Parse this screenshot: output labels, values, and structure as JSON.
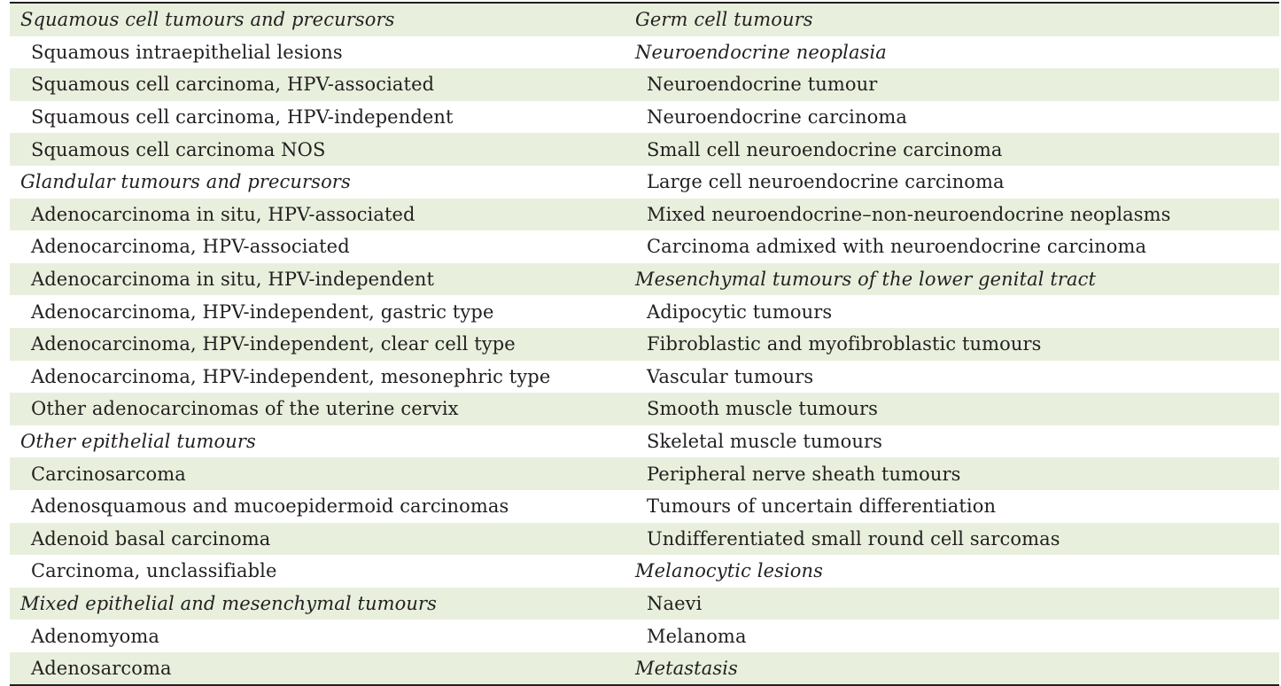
{
  "table": {
    "rows": [
      {
        "left": {
          "text": "Squamous cell tumours and precursors",
          "heading": true
        },
        "right": {
          "text": "Germ cell tumours",
          "heading": true
        }
      },
      {
        "left": {
          "text": "Squamous intraepithelial lesions",
          "heading": false
        },
        "right": {
          "text": "Neuroendocrine neoplasia",
          "heading": true
        }
      },
      {
        "left": {
          "text": "Squamous cell carcinoma, HPV-associated",
          "heading": false
        },
        "right": {
          "text": "Neuroendocrine tumour",
          "heading": false
        }
      },
      {
        "left": {
          "text": "Squamous cell carcinoma, HPV-independent",
          "heading": false
        },
        "right": {
          "text": "Neuroendocrine carcinoma",
          "heading": false
        }
      },
      {
        "left": {
          "text": "Squamous cell carcinoma NOS",
          "heading": false
        },
        "right": {
          "text": "Small cell neuroendocrine carcinoma",
          "heading": false
        }
      },
      {
        "left": {
          "text": "Glandular tumours and precursors",
          "heading": true
        },
        "right": {
          "text": "Large cell neuroendocrine carcinoma",
          "heading": false
        }
      },
      {
        "left": {
          "text": "Adenocarcinoma in situ, HPV-associated",
          "heading": false
        },
        "right": {
          "text": "Mixed neuroendocrine–non-neuroendocrine neoplasms",
          "heading": false
        }
      },
      {
        "left": {
          "text": "Adenocarcinoma, HPV-associated",
          "heading": false
        },
        "right": {
          "text": "Carcinoma admixed with neuroendocrine carcinoma",
          "heading": false
        }
      },
      {
        "left": {
          "text": "Adenocarcinoma in situ, HPV-independent",
          "heading": false
        },
        "right": {
          "text": "Mesenchymal tumours of the lower genital tract",
          "heading": true
        }
      },
      {
        "left": {
          "text": "Adenocarcinoma, HPV-independent, gastric type",
          "heading": false
        },
        "right": {
          "text": "Adipocytic tumours",
          "heading": false
        }
      },
      {
        "left": {
          "text": "Adenocarcinoma, HPV-independent, clear cell type",
          "heading": false
        },
        "right": {
          "text": "Fibroblastic and myofibroblastic tumours",
          "heading": false
        }
      },
      {
        "left": {
          "text": "Adenocarcinoma, HPV-independent, mesonephric type",
          "heading": false
        },
        "right": {
          "text": "Vascular tumours",
          "heading": false
        }
      },
      {
        "left": {
          "text": "Other adenocarcinomas of the uterine cervix",
          "heading": false
        },
        "right": {
          "text": "Smooth muscle tumours",
          "heading": false
        }
      },
      {
        "left": {
          "text": "Other epithelial tumours",
          "heading": true
        },
        "right": {
          "text": "Skeletal muscle tumours",
          "heading": false
        }
      },
      {
        "left": {
          "text": "Carcinosarcoma",
          "heading": false
        },
        "right": {
          "text": "Peripheral nerve sheath tumours",
          "heading": false
        }
      },
      {
        "left": {
          "text": "Adenosquamous and mucoepidermoid carcinomas",
          "heading": false
        },
        "right": {
          "text": "Tumours of uncertain differentiation",
          "heading": false
        }
      },
      {
        "left": {
          "text": "Adenoid basal carcinoma",
          "heading": false
        },
        "right": {
          "text": "Undifferentiated small round cell sarcomas",
          "heading": false
        }
      },
      {
        "left": {
          "text": "Carcinoma, unclassifiable",
          "heading": false
        },
        "right": {
          "text": "Melanocytic lesions",
          "heading": true
        }
      },
      {
        "left": {
          "text": "Mixed epithelial and mesenchymal tumours",
          "heading": true
        },
        "right": {
          "text": "Naevi",
          "heading": false
        }
      },
      {
        "left": {
          "text": "Adenomyoma",
          "heading": false
        },
        "right": {
          "text": "Melanoma",
          "heading": false
        }
      },
      {
        "left": {
          "text": "Adenosarcoma",
          "heading": false
        },
        "right": {
          "text": "Metastasis",
          "heading": true
        }
      }
    ]
  }
}
